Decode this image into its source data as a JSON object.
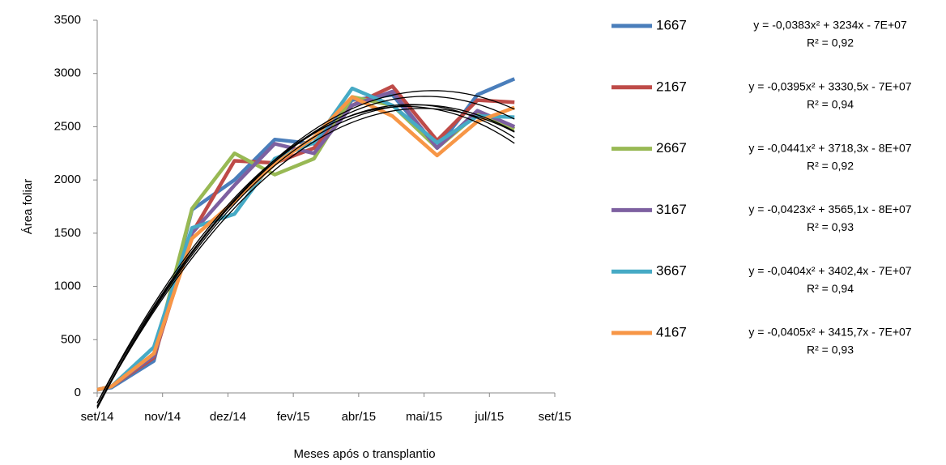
{
  "chart_data": {
    "type": "line",
    "y_label": "Área foliar",
    "x_label": "Meses após o transplantio",
    "x": [
      41883,
      41896,
      41935,
      41970,
      42009,
      42046,
      42082,
      42117,
      42154,
      42195,
      42232,
      42266
    ],
    "xlim": [
      41883,
      42303
    ],
    "xticks": [
      {
        "value": 41883,
        "label": "set/14"
      },
      {
        "value": 41943,
        "label": "nov/14"
      },
      {
        "value": 42003,
        "label": "dez/14"
      },
      {
        "value": 42063,
        "label": "fev/15"
      },
      {
        "value": 42123,
        "label": "abr/15"
      },
      {
        "value": 42183,
        "label": "mai/15"
      },
      {
        "value": 42243,
        "label": "jul/15"
      },
      {
        "value": 42303,
        "label": "set/15"
      }
    ],
    "ylim": [
      0,
      3500
    ],
    "yticks": [
      0,
      500,
      1000,
      1500,
      2000,
      2500,
      3000,
      3500
    ],
    "trendline": "polynomial-2",
    "trendline_color": "#000000",
    "series": [
      {
        "name": "1667",
        "color": "#4a7ebb",
        "values": [
          30,
          50,
          300,
          1720,
          2000,
          2380,
          2340,
          2750,
          2800,
          2300,
          2800,
          2950
        ],
        "equation": "y = -0,0383x² + 3234x - 7E+07",
        "r2": "R² = 0,92"
      },
      {
        "name": "2167",
        "color": "#be4b48",
        "values": [
          30,
          60,
          330,
          1500,
          2180,
          2160,
          2300,
          2700,
          2880,
          2370,
          2750,
          2730
        ],
        "equation": "y = -0,0395x² + 3330,5x - 7E+07",
        "r2": "R² = 0,94"
      },
      {
        "name": "2667",
        "color": "#98b954",
        "values": [
          30,
          60,
          350,
          1730,
          2250,
          2050,
          2200,
          2780,
          2700,
          2300,
          2620,
          2480
        ],
        "equation": "y = -0,0441x² + 3718,3x - 8E+07",
        "r2": "R² = 0,92"
      },
      {
        "name": "3167",
        "color": "#7d60a0",
        "values": [
          30,
          60,
          350,
          1500,
          1950,
          2340,
          2250,
          2700,
          2830,
          2300,
          2650,
          2500
        ],
        "equation": "y = -0,0423x² + 3565,1x - 8E+07",
        "r2": "R² = 0,93"
      },
      {
        "name": "3667",
        "color": "#46aac5",
        "values": [
          30,
          60,
          430,
          1550,
          1680,
          2200,
          2350,
          2860,
          2700,
          2350,
          2600,
          2590
        ],
        "equation": "y = -0,0404x² + 3402,4x - 7E+07",
        "r2": "R² = 0,94"
      },
      {
        "name": "4167",
        "color": "#f79646",
        "values": [
          30,
          60,
          370,
          1450,
          1800,
          2150,
          2400,
          2780,
          2600,
          2230,
          2550,
          2680
        ],
        "equation": "y = -0,0405x² + 3415,7x - 7E+07",
        "r2": "R² = 0,93"
      }
    ]
  }
}
